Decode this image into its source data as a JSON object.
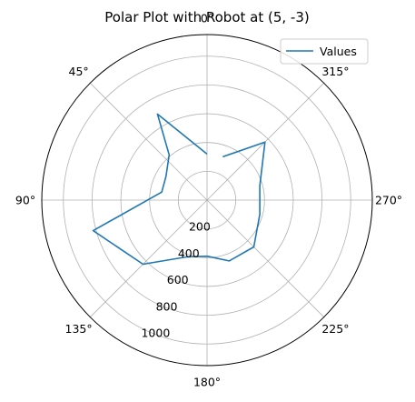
{
  "chart_data": {
    "type": "line",
    "projection": "polar",
    "title": "Polar Plot with Robot at (5, -3)",
    "theta_zero_location": "N",
    "theta_direction": "counterclockwise",
    "angle_unit": "degrees",
    "r_max": 1150,
    "r_ticks": [
      200,
      400,
      600,
      800,
      1000
    ],
    "r_tick_labels": [
      "200",
      "400",
      "600",
      "800",
      "1000"
    ],
    "r_label_angle_deg": 157.5,
    "theta_ticks": [
      0,
      45,
      90,
      135,
      180,
      225,
      270,
      315
    ],
    "theta_tick_labels": [
      "0°",
      "45°",
      "90°",
      "135°",
      "180°",
      "225°",
      "270°",
      "315°"
    ],
    "grid": true,
    "legend": {
      "position": "top-right",
      "entries": [
        "Values"
      ]
    },
    "series": [
      {
        "name": "Values",
        "color": "#1f77b4",
        "points": [
          {
            "theta": 340,
            "r": 320
          },
          {
            "theta": 315,
            "r": 570
          },
          {
            "theta": 285,
            "r": 380
          },
          {
            "theta": 255,
            "r": 380
          },
          {
            "theta": 225,
            "r": 460
          },
          {
            "theta": 200,
            "r": 450
          },
          {
            "theta": 180,
            "r": 390
          },
          {
            "theta": 160,
            "r": 420
          },
          {
            "theta": 135,
            "r": 630
          },
          {
            "theta": 105,
            "r": 820
          },
          {
            "theta": 80,
            "r": 320
          },
          {
            "theta": 60,
            "r": 330
          },
          {
            "theta": 40,
            "r": 410
          },
          {
            "theta": 30,
            "r": 690
          },
          {
            "theta": 0,
            "r": 320
          }
        ]
      }
    ]
  }
}
